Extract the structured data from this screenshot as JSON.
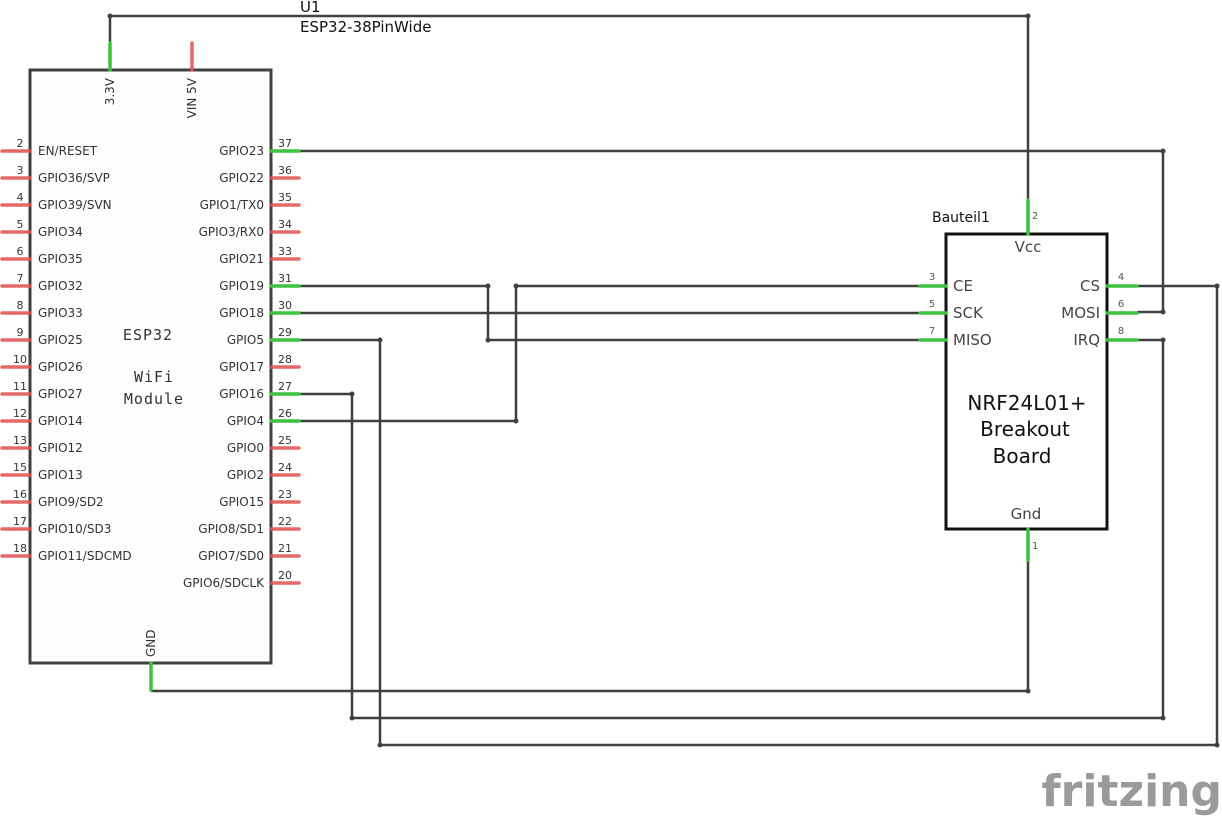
{
  "esp32": {
    "ref": "U1",
    "part": "ESP32-38PinWide",
    "body_text": [
      "ESP32",
      "WiFi",
      "Module"
    ],
    "top_pins": [
      {
        "label": "3.3V",
        "connected": true
      },
      {
        "label": "VIN 5V",
        "connected": false
      }
    ],
    "bottom_pin": {
      "label": "GND",
      "connected": true
    },
    "left_pins": [
      {
        "num": "2",
        "label": "EN/RESET"
      },
      {
        "num": "3",
        "label": "GPIO36/SVP"
      },
      {
        "num": "4",
        "label": "GPIO39/SVN"
      },
      {
        "num": "5",
        "label": "GPIO34"
      },
      {
        "num": "6",
        "label": "GPIO35"
      },
      {
        "num": "7",
        "label": "GPIO32"
      },
      {
        "num": "8",
        "label": "GPIO33"
      },
      {
        "num": "9",
        "label": "GPIO25"
      },
      {
        "num": "10",
        "label": "GPIO26"
      },
      {
        "num": "11",
        "label": "GPIO27"
      },
      {
        "num": "12",
        "label": "GPIO14"
      },
      {
        "num": "13",
        "label": "GPIO12"
      },
      {
        "num": "15",
        "label": "GPIO13"
      },
      {
        "num": "16",
        "label": "GPIO9/SD2"
      },
      {
        "num": "17",
        "label": "GPIO10/SD3"
      },
      {
        "num": "18",
        "label": "GPIO11/SDCMD"
      }
    ],
    "right_pins": [
      {
        "num": "37",
        "label": "GPIO23",
        "connected": true
      },
      {
        "num": "36",
        "label": "GPIO22",
        "connected": false
      },
      {
        "num": "35",
        "label": "GPIO1/TX0",
        "connected": false
      },
      {
        "num": "34",
        "label": "GPIO3/RX0",
        "connected": false
      },
      {
        "num": "33",
        "label": "GPIO21",
        "connected": false
      },
      {
        "num": "31",
        "label": "GPIO19",
        "connected": true
      },
      {
        "num": "30",
        "label": "GPIO18",
        "connected": true
      },
      {
        "num": "29",
        "label": "GPIO5",
        "connected": true
      },
      {
        "num": "28",
        "label": "GPIO17",
        "connected": false
      },
      {
        "num": "27",
        "label": "GPIO16",
        "connected": true
      },
      {
        "num": "26",
        "label": "GPIO4",
        "connected": true
      },
      {
        "num": "25",
        "label": "GPIO0",
        "connected": false
      },
      {
        "num": "24",
        "label": "GPIO2",
        "connected": false
      },
      {
        "num": "23",
        "label": "GPIO15",
        "connected": false
      },
      {
        "num": "22",
        "label": "GPIO8/SD1",
        "connected": false
      },
      {
        "num": "21",
        "label": "GPIO7/SD0",
        "connected": false
      },
      {
        "num": "20",
        "label": "GPIO6/SDCLK",
        "connected": false
      }
    ]
  },
  "nrf": {
    "ref": "Bauteil1",
    "title_lines": [
      "NRF24L01+",
      "Breakout",
      "Board"
    ],
    "vcc": {
      "num": "2",
      "label": "Vcc"
    },
    "gnd": {
      "num": "1",
      "label": "Gnd"
    },
    "left_pins": [
      {
        "num": "3",
        "label": "CE"
      },
      {
        "num": "5",
        "label": "SCK"
      },
      {
        "num": "7",
        "label": "MISO"
      }
    ],
    "right_pins": [
      {
        "num": "4",
        "label": "CS"
      },
      {
        "num": "6",
        "label": "MOSI"
      },
      {
        "num": "8",
        "label": "IRQ"
      }
    ]
  },
  "watermark": "fritzing",
  "colors": {
    "connected_pin": "#3cc23c",
    "unconnected_pin": "#e05050",
    "wire": "#404040"
  }
}
